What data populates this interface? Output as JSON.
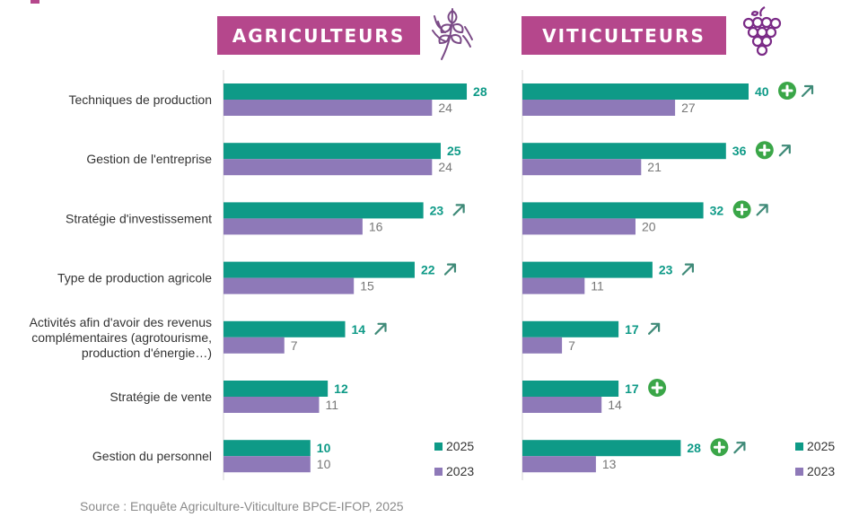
{
  "colors": {
    "y2025": "#0e9a87",
    "y2023": "#8e79b8",
    "badge": "#b5478c",
    "plus": "#3aa648",
    "arrow": "#3f8a78"
  },
  "chart_data": [
    {
      "type": "bar",
      "orientation": "horizontal",
      "title": "AGRICULTEURS",
      "icon": "wheat-icon",
      "categories": [
        "Techniques de production",
        "Gestion de l'entreprise",
        "Stratégie d'investissement",
        "Type de production agricole",
        "Activités afin d'avoir des revenus complémentaires (agrotourisme, production d'énergie…)",
        "Stratégie de vente",
        "Gestion du personnel"
      ],
      "category_lines": [
        [
          "Techniques de production"
        ],
        [
          "Gestion de l'entreprise"
        ],
        [
          "Stratégie d'investissement"
        ],
        [
          "Type de production agricole"
        ],
        [
          "Activités afin d'avoir des revenus",
          "complémentaires (agrotourisme,",
          "production d'énergie…)"
        ],
        [
          "Stratégie de vente"
        ],
        [
          "Gestion du personnel"
        ]
      ],
      "series": [
        {
          "name": "2025",
          "values": [
            28,
            25,
            23,
            22,
            14,
            12,
            10
          ]
        },
        {
          "name": "2023",
          "values": [
            24,
            24,
            16,
            15,
            7,
            11,
            10
          ]
        }
      ],
      "indicators": [
        [],
        [],
        [
          "up-arrow"
        ],
        [
          "up-arrow"
        ],
        [
          "up-arrow"
        ],
        [],
        []
      ],
      "legend_position": "bottom-right"
    },
    {
      "type": "bar",
      "orientation": "horizontal",
      "title": "VITICULTEURS",
      "icon": "grapes-icon",
      "series": [
        {
          "name": "2025",
          "values": [
            40,
            36,
            32,
            23,
            17,
            17,
            28
          ]
        },
        {
          "name": "2023",
          "values": [
            27,
            21,
            20,
            11,
            7,
            14,
            13
          ]
        }
      ],
      "indicators": [
        [
          "plus",
          "up-arrow"
        ],
        [
          "plus",
          "up-arrow"
        ],
        [
          "plus",
          "up-arrow"
        ],
        [
          "up-arrow"
        ],
        [
          "up-arrow"
        ],
        [
          "plus"
        ],
        [
          "plus",
          "up-arrow"
        ]
      ],
      "legend_position": "bottom-right"
    }
  ],
  "source": "Source : Enquête Agriculture-Viticulture BPCE-IFOP, 2025"
}
